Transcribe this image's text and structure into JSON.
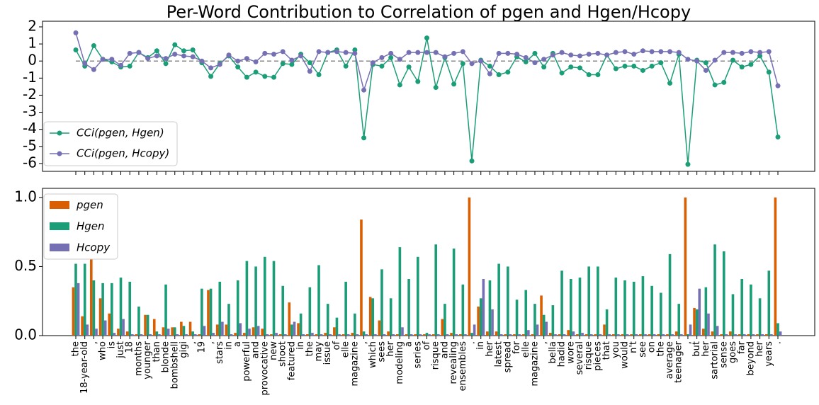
{
  "chart_data": [
    {
      "type": "line",
      "title": "Per-Word Contribution to Correlation of pgen and Hgen/Hcopy",
      "ylim": [
        -6.46,
        2.33
      ],
      "yticks": [
        -6,
        -5,
        -4,
        -3,
        -2,
        -1,
        0,
        1,
        2
      ],
      "hline": 0,
      "legend": "lower left",
      "series": [
        {
          "name": "CCi(pgen, Hgen)",
          "color": "#1b9e77",
          "values": [
            0.65,
            -0.3,
            0.9,
            0.1,
            -0.05,
            -0.35,
            -0.3,
            0.5,
            0.2,
            0.6,
            -0.15,
            0.95,
            0.6,
            0.65,
            -0.1,
            -0.9,
            -0.15,
            0.3,
            -0.35,
            -0.95,
            -0.65,
            -0.9,
            -0.95,
            -0.15,
            -0.2,
            0.4,
            -0.1,
            -0.8,
            0.5,
            0.65,
            -0.3,
            0.65,
            -4.5,
            -0.2,
            -0.3,
            0.2,
            -1.4,
            -0.35,
            -1.2,
            1.35,
            -1.55,
            0.2,
            -1.35,
            -0.15,
            -5.85,
            0.05,
            -0.3,
            -0.8,
            -0.65,
            0.25,
            -0.05,
            0.45,
            -0.35,
            0.45,
            -0.7,
            -0.35,
            -0.4,
            -0.8,
            -0.8,
            0.35,
            -0.45,
            -0.3,
            -0.3,
            -0.55,
            -0.3,
            -0.1,
            -1.3,
            0.4,
            -6.05,
            0.05,
            -0.1,
            -1.4,
            -1.25,
            0.05,
            -0.35,
            -0.2,
            0.3,
            -0.65,
            -4.45
          ]
        },
        {
          "name": "CCi(pgen, Hcopy)",
          "color": "#7570b3",
          "values": [
            1.65,
            -0.15,
            -0.5,
            0.1,
            0.1,
            -0.25,
            0.45,
            0.5,
            0.15,
            0.3,
            0.15,
            0.4,
            0.3,
            0.25,
            0.0,
            -0.4,
            -0.2,
            0.35,
            0.0,
            0.15,
            -0.05,
            0.45,
            0.4,
            0.55,
            0.05,
            0.3,
            -0.6,
            0.55,
            0.5,
            0.55,
            0.5,
            0.45,
            -1.7,
            -0.1,
            0.2,
            0.45,
            0.1,
            0.5,
            0.5,
            0.5,
            0.5,
            0.25,
            0.45,
            0.55,
            -0.15,
            0.0,
            -0.75,
            0.45,
            0.45,
            0.4,
            0.2,
            -0.1,
            0.1,
            0.35,
            0.5,
            0.35,
            0.3,
            0.4,
            0.45,
            0.35,
            0.5,
            0.55,
            0.4,
            0.6,
            0.55,
            0.55,
            0.55,
            0.5,
            0.1,
            0.0,
            -0.55,
            0.05,
            0.5,
            0.5,
            0.45,
            0.55,
            0.5,
            0.55,
            -1.45
          ]
        }
      ]
    },
    {
      "type": "bar",
      "ylim": [
        0,
        1.066
      ],
      "yticks": [
        {
          "value": 0,
          "label": "0.0"
        },
        {
          "value": 0.5,
          "label": "0.5"
        },
        {
          "value": 1,
          "label": "1.0"
        }
      ],
      "legend": "upper left",
      "categories": [
        "the",
        "18-year-old",
        ",",
        "who",
        "is",
        "just",
        "18",
        "months",
        "younger",
        "than",
        "blonde",
        "bombshell",
        "gigi",
        ",",
        "19",
        ",",
        "stars",
        "in",
        "a",
        "powerful",
        "and",
        "provocative",
        "new",
        "shoot",
        "featured",
        "in",
        "the",
        "may",
        "issue",
        "of",
        "elle",
        "magazine",
        ",",
        "which",
        "sees",
        "her",
        "modeling",
        "a",
        "series",
        "of",
        "risque",
        "and",
        "revealing",
        "ensembles",
        ".",
        "in",
        "her",
        "latest",
        "spread",
        "for",
        "elle",
        "magazine",
        ",",
        "bella",
        "hadid",
        "wore",
        "several",
        "risque",
        "pieces",
        "that",
        "you",
        "would",
        "n't",
        "see",
        "on",
        "the",
        "average",
        "teenager",
        ",",
        "but",
        "her",
        "sartorial",
        "sense",
        "goes",
        "far",
        "beyond",
        "her",
        "years",
        "."
      ],
      "series": [
        {
          "name": "pgen",
          "color": "#d95f02",
          "values": [
            0.35,
            0.14,
            0.72,
            0.27,
            0.16,
            0.05,
            0.03,
            0.01,
            0.15,
            0.12,
            0.06,
            0.06,
            0.1,
            0.1,
            0.01,
            0.33,
            0.08,
            0.08,
            0.02,
            0.02,
            0.06,
            0.05,
            0.01,
            0.01,
            0.24,
            0.09,
            0.01,
            0.01,
            0.02,
            0.06,
            0.01,
            0.02,
            0.84,
            0.28,
            0.11,
            0.03,
            0.01,
            0.01,
            0.01,
            0.01,
            0.01,
            0.12,
            0.02,
            0.01,
            1.0,
            0.21,
            0.03,
            0.03,
            0.01,
            0.01,
            0.01,
            0.01,
            0.29,
            0.02,
            0.01,
            0.04,
            0.01,
            0.01,
            0.01,
            0.08,
            0.01,
            0.01,
            0.01,
            0.01,
            0.01,
            0.01,
            0.01,
            0.03,
            1.0,
            0.2,
            0.05,
            0.03,
            0.01,
            0.03,
            0.01,
            0.01,
            0.01,
            0.01,
            1.0
          ]
        },
        {
          "name": "Hgen",
          "color": "#1b9e77",
          "values": [
            0.52,
            0.52,
            0.4,
            0.38,
            0.38,
            0.42,
            0.39,
            0.21,
            0.15,
            0.03,
            0.37,
            0.06,
            0.07,
            0.03,
            0.34,
            0.34,
            0.39,
            0.23,
            0.4,
            0.54,
            0.5,
            0.57,
            0.54,
            0.36,
            0.08,
            0.16,
            0.35,
            0.51,
            0.23,
            0.13,
            0.39,
            0.16,
            0.03,
            0.27,
            0.48,
            0.27,
            0.64,
            0.41,
            0.57,
            0.02,
            0.66,
            0.23,
            0.63,
            0.37,
            0.02,
            0.27,
            0.4,
            0.52,
            0.5,
            0.26,
            0.33,
            0.23,
            0.15,
            0.22,
            0.47,
            0.41,
            0.42,
            0.5,
            0.5,
            0.19,
            0.42,
            0.4,
            0.39,
            0.43,
            0.36,
            0.31,
            0.59,
            0.23,
            0.01,
            0.19,
            0.35,
            0.66,
            0.61,
            0.3,
            0.41,
            0.37,
            0.27,
            0.47,
            0.09
          ]
        },
        {
          "name": "Hcopy",
          "color": "#7570b3",
          "values": [
            0.38,
            0.08,
            0.05,
            0.11,
            0.02,
            0.12,
            0.01,
            0.01,
            0.01,
            0.01,
            0.05,
            0.01,
            0.01,
            0.01,
            0.07,
            0.02,
            0.1,
            0.01,
            0.09,
            0.05,
            0.07,
            0.01,
            0.02,
            0.01,
            0.1,
            0.01,
            0.02,
            0.01,
            0.01,
            0.01,
            0.01,
            0.01,
            0.01,
            0.01,
            0.01,
            0.01,
            0.06,
            0.01,
            0.01,
            0.01,
            0.01,
            0.01,
            0.01,
            0.01,
            0.08,
            0.41,
            0.19,
            0.01,
            0.01,
            0.01,
            0.04,
            0.08,
            0.1,
            0.01,
            0.01,
            0.03,
            0.02,
            0.01,
            0.01,
            0.01,
            0.01,
            0.01,
            0.01,
            0.01,
            0.01,
            0.01,
            0.01,
            0.01,
            0.08,
            0.34,
            0.16,
            0.07,
            0.01,
            0.01,
            0.01,
            0.01,
            0.01,
            0.01,
            0.03
          ]
        }
      ]
    }
  ]
}
